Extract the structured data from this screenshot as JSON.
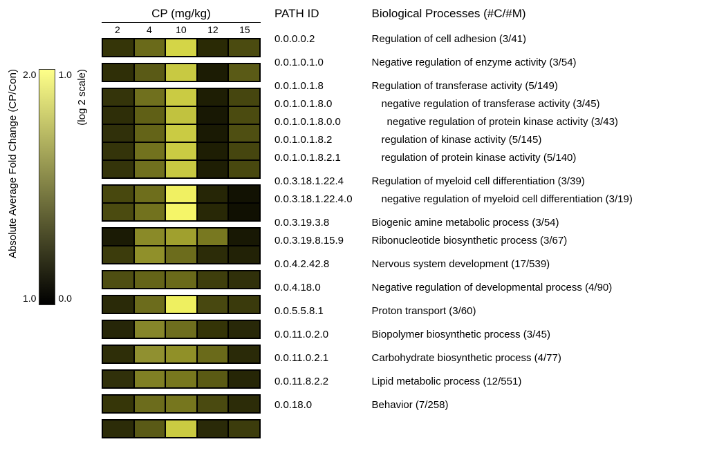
{
  "colorbar": {
    "label_main": "Absolute Average Fold Change (CP/Con)",
    "label_sub": "(log 2 scale)",
    "left_top": "2.0",
    "left_bottom": "1.0",
    "right_top": "1.0",
    "right_bottom": "0.0",
    "gradient_top": "#feff89",
    "gradient_bottom": "#000000"
  },
  "heatmap": {
    "top_title": "CP (mg/kg)",
    "columns": [
      "2",
      "4",
      "10",
      "12",
      "15"
    ],
    "path_header": "PATH ID",
    "bio_header": "Biological Processes (#C/#M)",
    "cell_border": "#000000",
    "blocks": [
      {
        "rows": [
          {
            "path": "0.0.0.0.2",
            "bio": "Regulation of cell adhesion (3/41)",
            "indent": 0,
            "colors": [
              "#353508",
              "#6a6a1a",
              "#d4d547",
              "#2a2a05",
              "#4b4b10"
            ]
          }
        ]
      },
      {
        "rows": [
          {
            "path": "0.0.1.0.1.0",
            "bio": "Negative regulation of enzyme activity (3/54)",
            "indent": 0,
            "colors": [
              "#2f2f07",
              "#5a5a16",
              "#c8c942",
              "#1c1c04",
              "#5a5a16"
            ]
          }
        ]
      },
      {
        "rows": [
          {
            "path": "0.0.1.0.1.8",
            "bio": "Regulation of transferase activity (5/149)",
            "indent": 0,
            "colors": [
              "#34340a",
              "#70701e",
              "#cacb43",
              "#1e1e04",
              "#46460f"
            ]
          },
          {
            "path": "0.0.1.0.1.8.0",
            "bio": "negative regulation of transferase activity (3/45)",
            "indent": 1,
            "colors": [
              "#2e2e08",
              "#606016",
              "#c1c23f",
              "#181804",
              "#4b4b10"
            ]
          },
          {
            "path": "0.0.1.0.1.8.0.0",
            "bio": "negative regulation of protein kinase activity (3/43)",
            "indent": 2,
            "colors": [
              "#30300a",
              "#646418",
              "#cacb43",
              "#1a1a04",
              "#4f4f12"
            ]
          },
          {
            "path": "0.0.1.0.1.8.2",
            "bio": "regulation of kinase activity (5/145)",
            "indent": 1,
            "colors": [
              "#34340a",
              "#72721e",
              "#cacb43",
              "#1e1e04",
              "#46460f"
            ]
          },
          {
            "path": "0.0.1.0.1.8.2.1",
            "bio": "regulation of protein kinase activity (5/140)",
            "indent": 1,
            "colors": [
              "#34340a",
              "#70701e",
              "#c8c942",
              "#1e1e04",
              "#48480f"
            ]
          }
        ]
      },
      {
        "rows": [
          {
            "path": "0.0.3.18.1.22.4",
            "bio": "Regulation of myeloid cell differentiation (3/39)",
            "indent": 0,
            "colors": [
              "#48480e",
              "#6e6e1c",
              "#f0f062",
              "#262606",
              "#121203"
            ]
          },
          {
            "path": "0.0.3.18.1.22.4.0",
            "bio": "negative regulation of myeloid cell differentiation (3/19)",
            "indent": 1,
            "colors": [
              "#4b4b10",
              "#72721e",
              "#f5f568",
              "#282806",
              "#101002"
            ]
          }
        ]
      },
      {
        "rows": [
          {
            "path": "0.0.3.19.3.8",
            "bio": "Biogenic amine metabolic process (3/54)",
            "indent": 0,
            "colors": [
              "#1b1b05",
              "#8a8a28",
              "#a0a02e",
              "#787820",
              "#181804"
            ]
          },
          {
            "path": "0.0.3.19.8.15.9",
            "bio": "Ribonucleotide biosynthetic process (3/67)",
            "indent": 0,
            "colors": [
              "#3c3c0c",
              "#90902a",
              "#6c6c1c",
              "#2c2c08",
              "#222206"
            ]
          }
        ]
      },
      {
        "rows": [
          {
            "path": "0.0.4.2.42.8",
            "bio": "Nervous system development (17/539)",
            "indent": 0,
            "colors": [
              "#4e4e12",
              "#646418",
              "#6a6a1a",
              "#3e3e0c",
              "#30300a"
            ]
          }
        ]
      },
      {
        "rows": [
          {
            "path": "0.0.4.18.0",
            "bio": "Negative regulation of developmental process (4/90)",
            "indent": 0,
            "colors": [
              "#2a2a08",
              "#6c6c1c",
              "#eeef60",
              "#484810",
              "#3a3a0c"
            ]
          }
        ]
      },
      {
        "rows": [
          {
            "path": "0.0.5.5.8.1",
            "bio": "Proton transport (3/60)",
            "indent": 0,
            "colors": [
              "#262608",
              "#86862a",
              "#6e6e1e",
              "#343407",
              "#282808"
            ]
          }
        ]
      },
      {
        "rows": [
          {
            "path": "0.0.11.0.2.0",
            "bio": "Biopolymer biosynthetic process (3/45)",
            "indent": 0,
            "colors": [
              "#2e2e08",
              "#909030",
              "#909028",
              "#6a6a1a",
              "#2a2a08"
            ]
          }
        ]
      },
      {
        "rows": [
          {
            "path": "0.0.11.0.2.1",
            "bio": "Carbohydrate biosynthetic process (4/77)",
            "indent": 0,
            "colors": [
              "#30300a",
              "#808024",
              "#78781e",
              "#5a5a14",
              "#262606"
            ]
          }
        ]
      },
      {
        "rows": [
          {
            "path": "0.0.11.8.2.2",
            "bio": "Lipid metabolic process (12/551)",
            "indent": 0,
            "colors": [
              "#363608",
              "#6c6c1c",
              "#76761e",
              "#4a4a10",
              "#2c2c08"
            ]
          }
        ]
      },
      {
        "rows": [
          {
            "path": "0.0.18.0",
            "bio": "Behavior (7/258)",
            "indent": 0,
            "colors": [
              "#2c2c08",
              "#5a5a16",
              "#cacb42",
              "#2a2a08",
              "#3c3c0c"
            ]
          }
        ]
      }
    ]
  }
}
